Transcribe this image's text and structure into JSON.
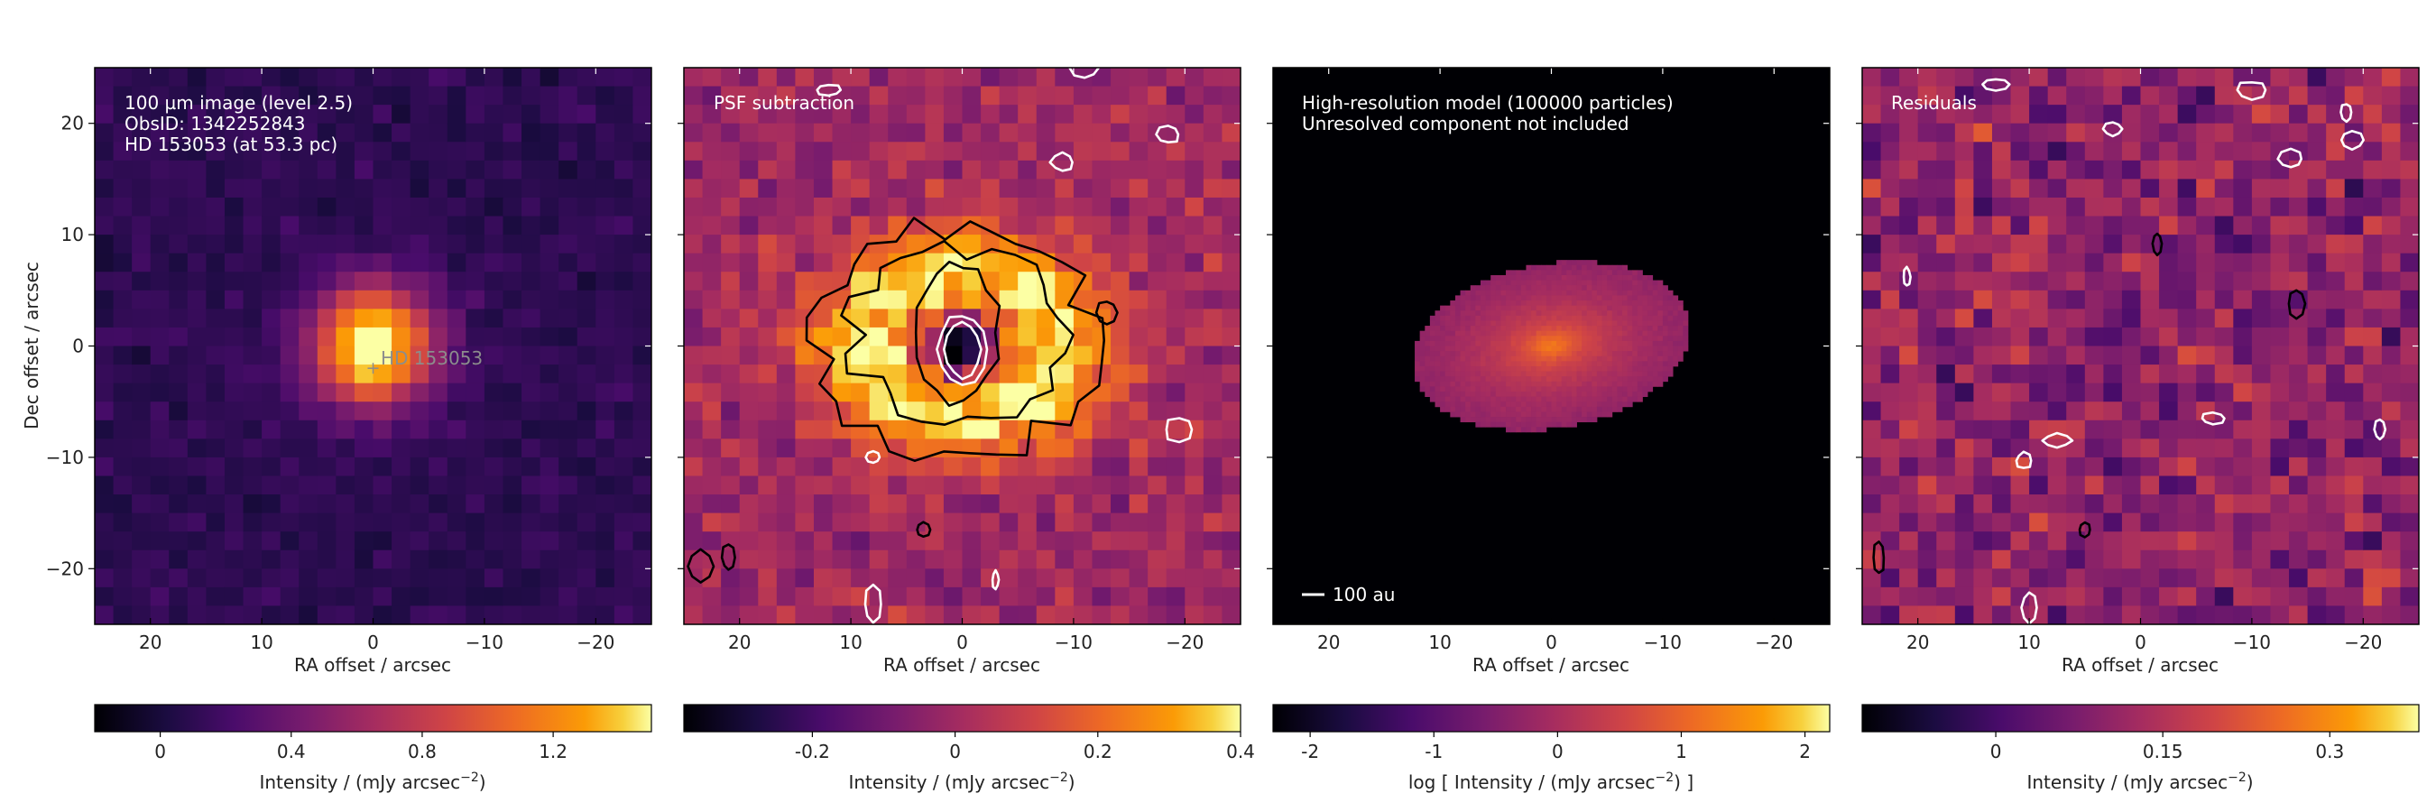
{
  "figure": {
    "panels": [
      {
        "id": "image",
        "annotation_lines": [
          "100 µm image (level 2.5)",
          "ObsID: 1342252843",
          "HD 153053 (at 53.3 pc)"
        ],
        "star_label": "HD 153053",
        "colorbar": {
          "ticks": [
            "0",
            "0.4",
            "0.8",
            "1.2"
          ],
          "label_prefix": "Intensity / (mJy arcsec",
          "label_exp": "−2",
          "label_suffix": ")"
        }
      },
      {
        "id": "psf-subtraction",
        "annotation_lines": [
          "PSF subtraction"
        ],
        "colorbar": {
          "ticks": [
            "-0.2",
            "0",
            "0.2",
            "0.4"
          ],
          "label_prefix": "Intensity / (mJy arcsec",
          "label_exp": "−2",
          "label_suffix": ")"
        }
      },
      {
        "id": "model",
        "annotation_lines": [
          "High-resolution model (100000 particles)",
          "Unresolved component not included"
        ],
        "scalebar_label": "100 au",
        "colorbar": {
          "ticks": [
            "-2",
            "-1",
            "0",
            "1",
            "2"
          ],
          "label_prefix": "log [ Intensity / (mJy arcsec",
          "label_exp": "−2",
          "label_suffix": ") ]"
        }
      },
      {
        "id": "residuals",
        "annotation_lines": [
          "Residuals"
        ],
        "colorbar": {
          "ticks": [
            "0",
            "0.15",
            "0.3"
          ],
          "label_prefix": "Intensity / (mJy arcsec",
          "label_exp": "−2",
          "label_suffix": ")"
        }
      }
    ],
    "x_axis_label": "RA offset / arcsec",
    "y_axis_label": "Dec offset / arcsec",
    "colormap": "inferno"
  },
  "chart_data": [
    {
      "type": "heatmap",
      "title": "100 µm image (level 2.5)",
      "annotations": [
        "ObsID: 1342252843",
        "HD 153053 (at 53.3 pc)",
        "HD 153053"
      ],
      "xlabel": "RA offset / arcsec",
      "ylabel": "Dec offset / arcsec",
      "xlim": [
        25,
        -25
      ],
      "ylim": [
        -25,
        25
      ],
      "xticks": [
        20,
        10,
        0,
        -10,
        -20
      ],
      "yticks": [
        -20,
        -10,
        0,
        10,
        20
      ],
      "star_position": [
        0,
        -2
      ],
      "colorbar": {
        "label": "Intensity / (mJy arcsec^-2)",
        "range": [
          -0.2,
          1.5
        ],
        "ticks": [
          0,
          0.4,
          0.8,
          1.2
        ]
      },
      "source": {
        "center": [
          0,
          0
        ],
        "peak": 1.5,
        "fwhm_arcsec": 9
      }
    },
    {
      "type": "heatmap",
      "title": "PSF subtraction",
      "xlabel": "RA offset / arcsec",
      "xlim": [
        25,
        -25
      ],
      "ylim": [
        -25,
        25
      ],
      "xticks": [
        20,
        10,
        0,
        -10,
        -20
      ],
      "yticks": [
        -20,
        -10,
        0,
        10,
        20
      ],
      "colorbar": {
        "label": "Intensity / (mJy arcsec^-2)",
        "range": [
          -0.38,
          0.4
        ],
        "ticks": [
          -0.2,
          0,
          0.2,
          0.4
        ]
      },
      "contours": "black: positive residual levels; white: negative levels"
    },
    {
      "type": "heatmap",
      "title": "High-resolution model (100000 particles)",
      "annotations": [
        "Unresolved component not included",
        "100 au"
      ],
      "xlabel": "RA offset / arcsec",
      "xlim": [
        25,
        -25
      ],
      "ylim": [
        -25,
        25
      ],
      "xticks": [
        20,
        10,
        0,
        -10,
        -20
      ],
      "yticks": [
        -20,
        -10,
        0,
        10,
        20
      ],
      "colorbar": {
        "label": "log [ Intensity / (mJy arcsec^-2) ]",
        "range": [
          -2.3,
          2.2
        ],
        "ticks": [
          -2,
          -1,
          0,
          1,
          2
        ]
      },
      "model_disc": {
        "center": [
          0,
          0
        ],
        "semi_major_arcsec": 12.5,
        "semi_minor_arcsec": 7.4,
        "position_angle_deg": 10
      }
    },
    {
      "type": "heatmap",
      "title": "Residuals",
      "xlabel": "RA offset / arcsec",
      "xlim": [
        25,
        -25
      ],
      "ylim": [
        -25,
        25
      ],
      "xticks": [
        20,
        10,
        0,
        -10,
        -20
      ],
      "yticks": [
        -20,
        -10,
        0,
        10,
        20
      ],
      "colorbar": {
        "label": "Intensity / (mJy arcsec^-2)",
        "range": [
          -0.12,
          0.38
        ],
        "ticks": [
          0,
          0.15,
          0.3
        ]
      }
    }
  ]
}
